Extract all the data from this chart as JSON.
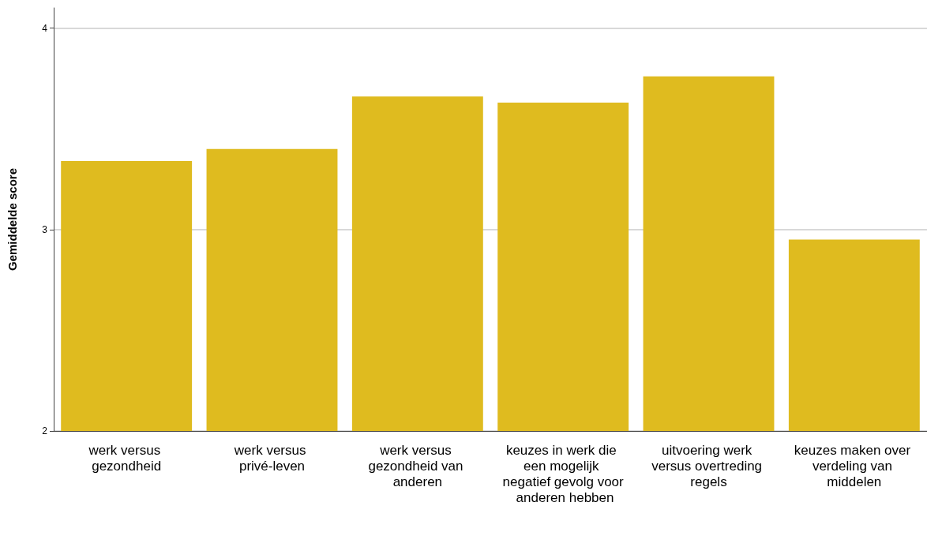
{
  "chart_data": {
    "type": "bar",
    "ylabel": "Gemiddelde score",
    "categories": [
      "werk versus gezondheid",
      "werk versus privé-leven",
      "werk versus gezondheid van anderen",
      "keuzes in werk die een mogelijk negatief gevolg voor anderen hebben",
      "uitvoering werk versus overtreding regels",
      "keuzes maken over verdeling van middelen"
    ],
    "values": [
      3.34,
      3.4,
      3.66,
      3.63,
      3.76,
      2.95
    ],
    "color": "#dfbb1f",
    "ylim": [
      2,
      4.1
    ],
    "yticks": [
      2,
      3,
      4
    ],
    "grid": "y"
  }
}
